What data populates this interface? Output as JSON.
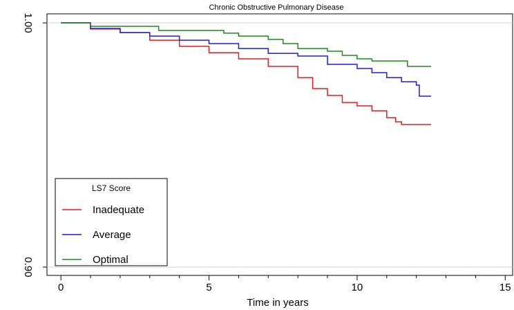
{
  "chart_data": {
    "type": "step",
    "title": "Chronic Obstructive Pulmonary Disease",
    "xlabel": "Time in years",
    "xlim": [
      -0.47,
      15.25
    ],
    "xticks": [
      0,
      5,
      10,
      15
    ],
    "xminorticks": [
      1,
      2,
      3,
      4,
      6,
      7,
      8,
      9,
      11,
      12,
      13,
      14
    ],
    "ylim": [
      0.8966,
      1.0037
    ],
    "yticks": [
      {
        "value": 0.9,
        "label": "0.90"
      },
      {
        "value": 1,
        "label": "1.00"
      }
    ],
    "grid": true,
    "legend_title": "LS7 Score",
    "legend": "lower left",
    "series": [
      {
        "name": "Inadequate",
        "color": "#e8191a",
        "x": [
          0,
          1,
          2,
          3,
          4,
          5,
          6,
          7,
          8,
          8.5,
          9,
          9.5,
          10,
          10.5,
          11,
          11.3,
          11.5,
          12.5
        ],
        "values": [
          1,
          0.9975,
          0.996,
          0.9929,
          0.9904,
          0.9878,
          0.9853,
          0.9822,
          0.9776,
          0.9731,
          0.9703,
          0.9674,
          0.966,
          0.964,
          0.9612,
          0.9595,
          0.9584,
          0.9584
        ]
      },
      {
        "name": "Average",
        "color": "#1a1ae8",
        "x": [
          0,
          1,
          2,
          3,
          4,
          5,
          6,
          7,
          8,
          9,
          10,
          10.5,
          11,
          11.5,
          12,
          12.1,
          12.5
        ],
        "values": [
          1,
          0.9977,
          0.996,
          0.9946,
          0.9929,
          0.9915,
          0.9895,
          0.9875,
          0.9864,
          0.983,
          0.9813,
          0.9796,
          0.9776,
          0.9759,
          0.9745,
          0.97,
          0.97
        ]
      },
      {
        "name": "Optimal",
        "color": "#1a8a1a",
        "x": [
          0,
          1,
          3.3,
          5.5,
          6,
          7,
          7.5,
          8,
          9,
          9.5,
          10,
          10.5,
          11.7,
          12.5
        ],
        "values": [
          1,
          0.9986,
          0.9969,
          0.9958,
          0.9946,
          0.9932,
          0.9915,
          0.9895,
          0.9884,
          0.9867,
          0.9853,
          0.9844,
          0.9822,
          0.9822
        ]
      }
    ]
  }
}
